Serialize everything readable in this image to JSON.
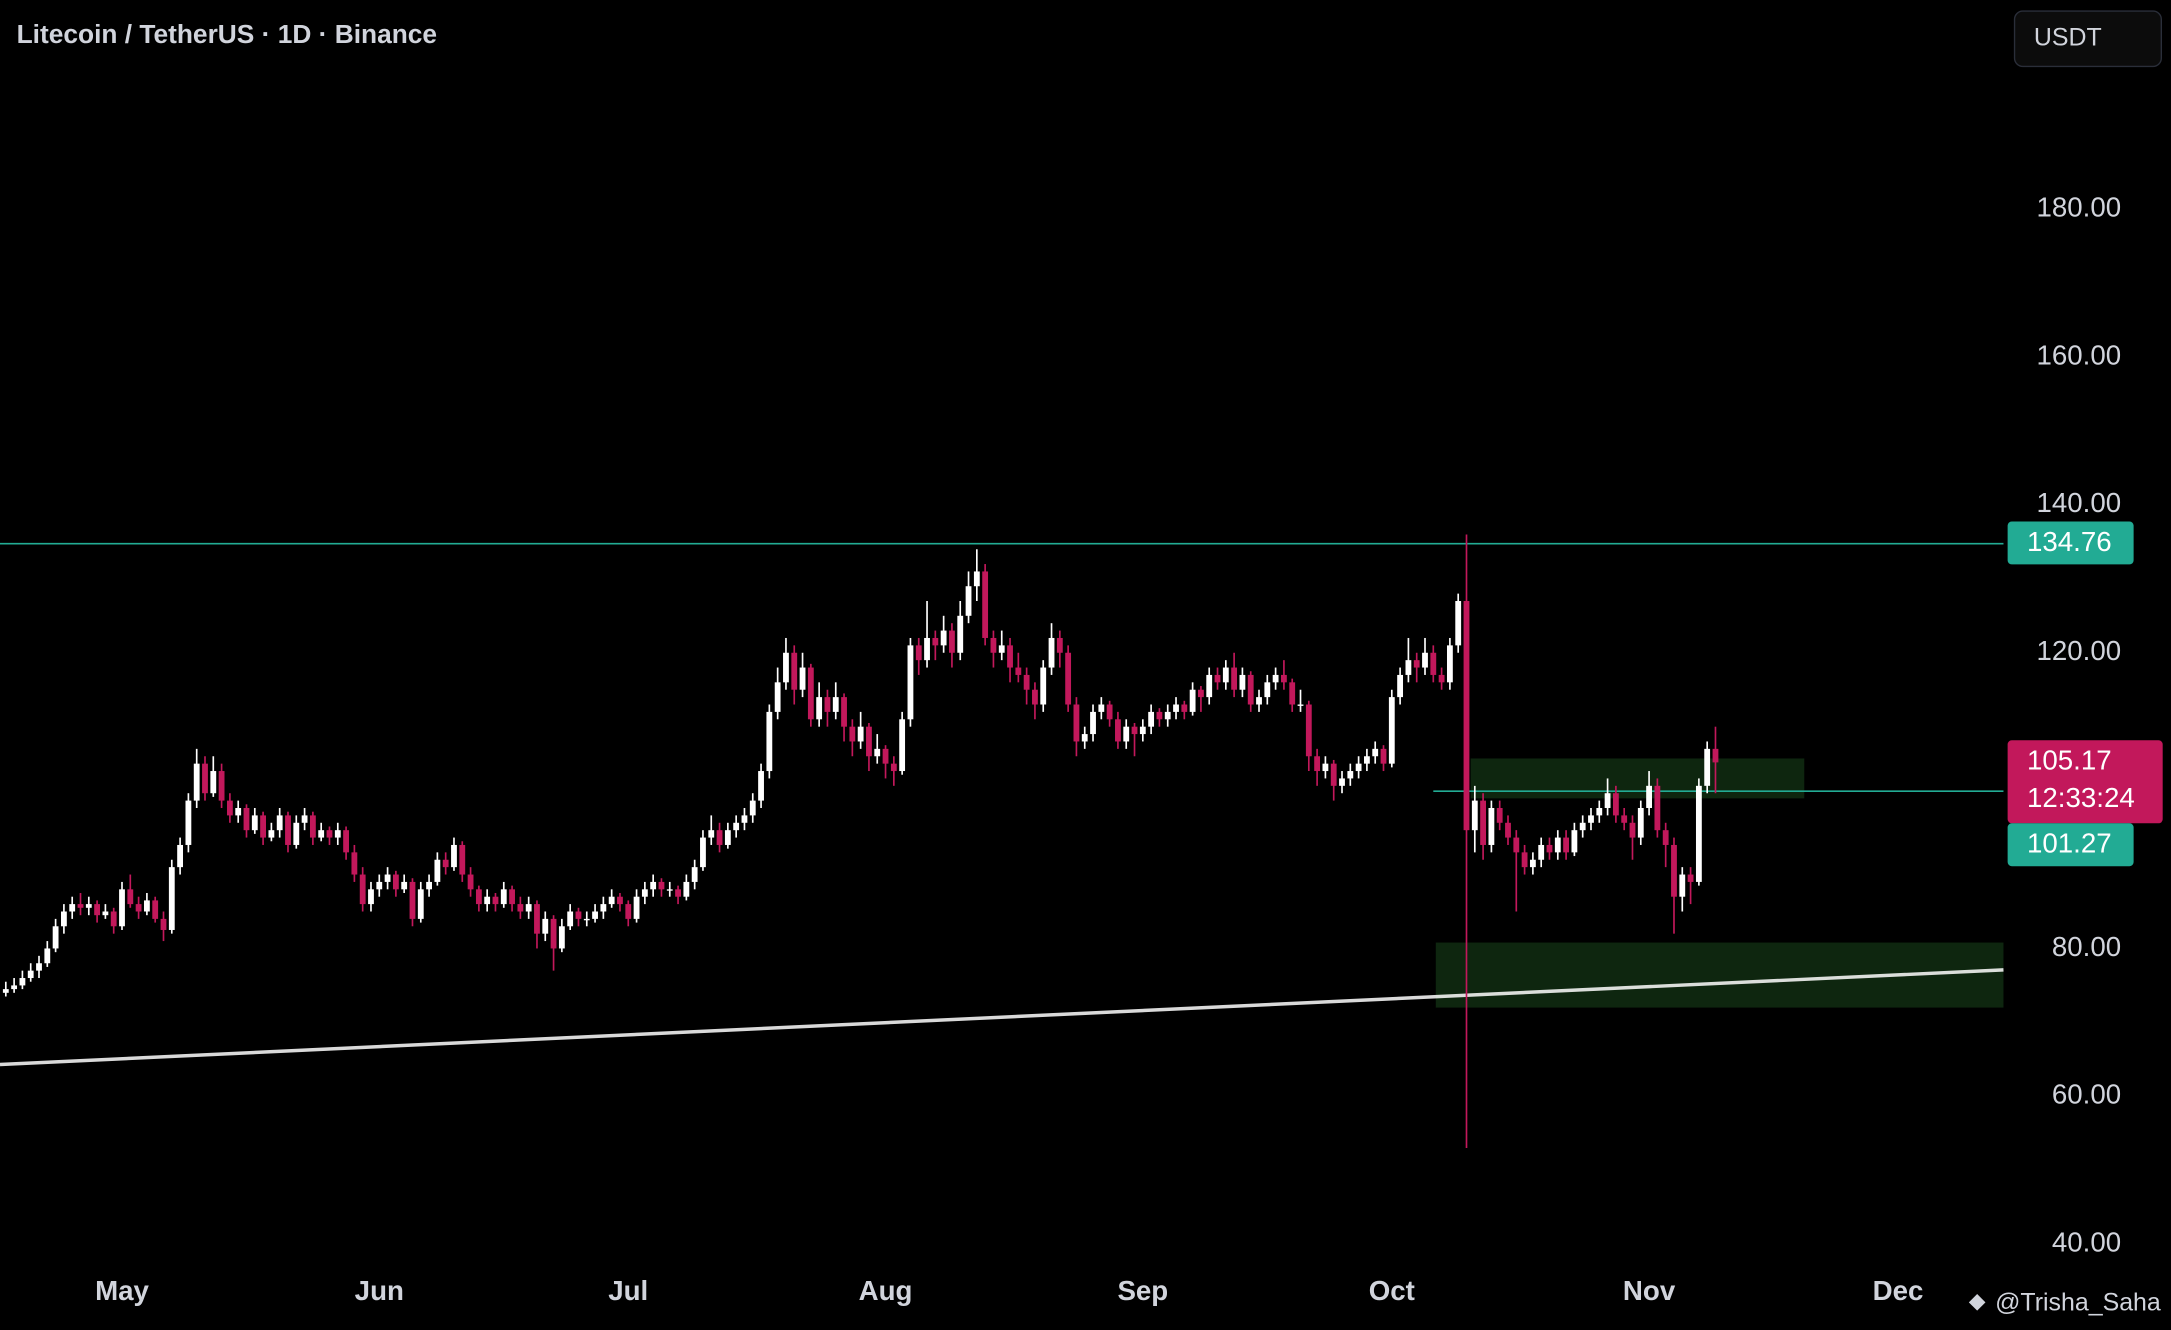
{
  "header": {
    "title": "Litecoin / TetherUS · 1D · Binance",
    "currency": "USDT"
  },
  "chart_data": {
    "type": "candlestick",
    "ohlc": [
      [
        74,
        75.5,
        73.5,
        74.5
      ],
      [
        74.5,
        76,
        74,
        75
      ],
      [
        75,
        77,
        74.5,
        76
      ],
      [
        76,
        78,
        75.5,
        77
      ],
      [
        77,
        79,
        76,
        78
      ],
      [
        78,
        81,
        77.5,
        80
      ],
      [
        80,
        84,
        79.5,
        83
      ],
      [
        83,
        86,
        82,
        85
      ],
      [
        85,
        87,
        84,
        86
      ],
      [
        86,
        87.5,
        84.5,
        85.5
      ],
      [
        85.5,
        87,
        84.5,
        86
      ],
      [
        86,
        86.5,
        83.5,
        84.5
      ],
      [
        84.5,
        86,
        84,
        85
      ],
      [
        85,
        85.5,
        82,
        83
      ],
      [
        83,
        89,
        82.5,
        88
      ],
      [
        88,
        90,
        85.5,
        86
      ],
      [
        86,
        87,
        84,
        85
      ],
      [
        85,
        87.5,
        84.5,
        86.5
      ],
      [
        86.5,
        87,
        83.5,
        84
      ],
      [
        84,
        85,
        81,
        82.5
      ],
      [
        82.5,
        92,
        82,
        91
      ],
      [
        91,
        95,
        90,
        94
      ],
      [
        94,
        101,
        93,
        100
      ],
      [
        100,
        107,
        99,
        105
      ],
      [
        105,
        106,
        100,
        101
      ],
      [
        101,
        106,
        100.5,
        104
      ],
      [
        104,
        105,
        99,
        100
      ],
      [
        100,
        101,
        97,
        98
      ],
      [
        98,
        100,
        97,
        99
      ],
      [
        99,
        99.5,
        95,
        96
      ],
      [
        96,
        99,
        95.5,
        98
      ],
      [
        98,
        98.5,
        94,
        95
      ],
      [
        95,
        97,
        94.5,
        96
      ],
      [
        96,
        99,
        95,
        98
      ],
      [
        98,
        98.5,
        93,
        94
      ],
      [
        94,
        98,
        93.5,
        97
      ],
      [
        97,
        99,
        96,
        98
      ],
      [
        98,
        98.5,
        94,
        95
      ],
      [
        95,
        97,
        94.5,
        96
      ],
      [
        96,
        96.5,
        94,
        95
      ],
      [
        95,
        97,
        94,
        96
      ],
      [
        96,
        96.5,
        92,
        93
      ],
      [
        93,
        94,
        89,
        90
      ],
      [
        90,
        91,
        85,
        86
      ],
      [
        86,
        89,
        85,
        88
      ],
      [
        88,
        90,
        87,
        89
      ],
      [
        89,
        91,
        88,
        90
      ],
      [
        90,
        90.5,
        87,
        88
      ],
      [
        88,
        90,
        87.5,
        89
      ],
      [
        89,
        89.5,
        83,
        84
      ],
      [
        84,
        89,
        83.5,
        88
      ],
      [
        88,
        90,
        87,
        89
      ],
      [
        89,
        93,
        88.5,
        92
      ],
      [
        92,
        93,
        90,
        91
      ],
      [
        91,
        95,
        90.5,
        94
      ],
      [
        94,
        94.5,
        89,
        90
      ],
      [
        90,
        91,
        87,
        88
      ],
      [
        88,
        88.5,
        85,
        86
      ],
      [
        86,
        88,
        85,
        87
      ],
      [
        87,
        87.5,
        85,
        86
      ],
      [
        86,
        89,
        85.5,
        88
      ],
      [
        88,
        88.5,
        85,
        86
      ],
      [
        86,
        87,
        84,
        85
      ],
      [
        85,
        87,
        84,
        86
      ],
      [
        86,
        86.5,
        80,
        82
      ],
      [
        82,
        85,
        81,
        84
      ],
      [
        84,
        84.5,
        77,
        80
      ],
      [
        80,
        84,
        79.5,
        83
      ],
      [
        83,
        86,
        82.5,
        85
      ],
      [
        85,
        85.5,
        83,
        84
      ],
      [
        84,
        85,
        83,
        84
      ],
      [
        84,
        86,
        83.5,
        85
      ],
      [
        85,
        87,
        84,
        86
      ],
      [
        86,
        88,
        85.5,
        87
      ],
      [
        87,
        87.5,
        85,
        86
      ],
      [
        86,
        86.5,
        83,
        84
      ],
      [
        84,
        88,
        83.5,
        87
      ],
      [
        87,
        89,
        86,
        88
      ],
      [
        88,
        90,
        87,
        89
      ],
      [
        89,
        89.5,
        87,
        88
      ],
      [
        88,
        89,
        87,
        88
      ],
      [
        88,
        88.5,
        86,
        87
      ],
      [
        87,
        90,
        86.5,
        89
      ],
      [
        89,
        92,
        88,
        91
      ],
      [
        91,
        96,
        90.5,
        95
      ],
      [
        95,
        98,
        94,
        96
      ],
      [
        96,
        97,
        93,
        94
      ],
      [
        94,
        97,
        93.5,
        96
      ],
      [
        96,
        98,
        95,
        97
      ],
      [
        97,
        99,
        96,
        98
      ],
      [
        98,
        101,
        97,
        100
      ],
      [
        100,
        105,
        99,
        104
      ],
      [
        104,
        113,
        103,
        112
      ],
      [
        112,
        118,
        111,
        116
      ],
      [
        116,
        122,
        115,
        120
      ],
      [
        120,
        121,
        113,
        115
      ],
      [
        115,
        120,
        114,
        118
      ],
      [
        118,
        118.5,
        110,
        111
      ],
      [
        111,
        116,
        110,
        114
      ],
      [
        114,
        115,
        110,
        112
      ],
      [
        112,
        116,
        111,
        114
      ],
      [
        114,
        114.5,
        108,
        110
      ],
      [
        110,
        111,
        106,
        108
      ],
      [
        108,
        112,
        107,
        110
      ],
      [
        110,
        110.5,
        104,
        106
      ],
      [
        106,
        109,
        105,
        107
      ],
      [
        107,
        107.5,
        103,
        105
      ],
      [
        105,
        106,
        102,
        104
      ],
      [
        104,
        112,
        103.5,
        111
      ],
      [
        111,
        122,
        110,
        121
      ],
      [
        121,
        122,
        117,
        119
      ],
      [
        119,
        127,
        118,
        122
      ],
      [
        122,
        123,
        119,
        121
      ],
      [
        121,
        125,
        120,
        123
      ],
      [
        123,
        124,
        118,
        120
      ],
      [
        120,
        127,
        119,
        125
      ],
      [
        125,
        131,
        124,
        129
      ],
      [
        129,
        134,
        127,
        131
      ],
      [
        131,
        132,
        121,
        122
      ],
      [
        122,
        123,
        118,
        120
      ],
      [
        120,
        123,
        119,
        121
      ],
      [
        121,
        122,
        116,
        118
      ],
      [
        118,
        120,
        116,
        117
      ],
      [
        117,
        118,
        113,
        115
      ],
      [
        115,
        116,
        111,
        113
      ],
      [
        113,
        119,
        112,
        118
      ],
      [
        118,
        124,
        117,
        122
      ],
      [
        122,
        123,
        118,
        120
      ],
      [
        120,
        121,
        112,
        113
      ],
      [
        113,
        114,
        106,
        108
      ],
      [
        108,
        110,
        107,
        109
      ],
      [
        109,
        113,
        108,
        112
      ],
      [
        112,
        114,
        111,
        113
      ],
      [
        113,
        113.5,
        110,
        111
      ],
      [
        111,
        112,
        107,
        108
      ],
      [
        108,
        111,
        107,
        110
      ],
      [
        110,
        110.5,
        106,
        109
      ],
      [
        109,
        111,
        108,
        110
      ],
      [
        110,
        113,
        109,
        112
      ],
      [
        112,
        112.5,
        110,
        111
      ],
      [
        111,
        113,
        110,
        112
      ],
      [
        112,
        114,
        111,
        113
      ],
      [
        113,
        113.5,
        111,
        112
      ],
      [
        112,
        116,
        111.5,
        115
      ],
      [
        115,
        115.5,
        112,
        114
      ],
      [
        114,
        118,
        113,
        117
      ],
      [
        117,
        118,
        115,
        116
      ],
      [
        116,
        119,
        115,
        118
      ],
      [
        118,
        120,
        114,
        115
      ],
      [
        115,
        118,
        114,
        117
      ],
      [
        117,
        117.5,
        112,
        113
      ],
      [
        113,
        115,
        112,
        114
      ],
      [
        114,
        117,
        113,
        116
      ],
      [
        116,
        118,
        115,
        117
      ],
      [
        117,
        119,
        115,
        116
      ],
      [
        116,
        116.5,
        112,
        113
      ],
      [
        113,
        115,
        112,
        113
      ],
      [
        113,
        113.5,
        104,
        106
      ],
      [
        106,
        107,
        102,
        104
      ],
      [
        104,
        106,
        103,
        105
      ],
      [
        105,
        105.5,
        100,
        102
      ],
      [
        102,
        104,
        101,
        103
      ],
      [
        103,
        105,
        102,
        104
      ],
      [
        104,
        106,
        103,
        105
      ],
      [
        105,
        107,
        104,
        106
      ],
      [
        106,
        108,
        105,
        107
      ],
      [
        107,
        107.5,
        104,
        105
      ],
      [
        105,
        115,
        104.5,
        114
      ],
      [
        114,
        118,
        113,
        117
      ],
      [
        117,
        122,
        116,
        119
      ],
      [
        119,
        120,
        116,
        118
      ],
      [
        118,
        122,
        117,
        120
      ],
      [
        120,
        121,
        116,
        117
      ],
      [
        117,
        118,
        115,
        116
      ],
      [
        116,
        122,
        115,
        121
      ],
      [
        121,
        128,
        120,
        127
      ],
      [
        127,
        136,
        53,
        96
      ],
      [
        96,
        102,
        93,
        100
      ],
      [
        100,
        101,
        92,
        94
      ],
      [
        94,
        100,
        93,
        99
      ],
      [
        99,
        100,
        96,
        97
      ],
      [
        97,
        98,
        94,
        95
      ],
      [
        95,
        96,
        85,
        93
      ],
      [
        93,
        94,
        90,
        91
      ],
      [
        91,
        93,
        90,
        92
      ],
      [
        92,
        95,
        91,
        94
      ],
      [
        94,
        95,
        92,
        93
      ],
      [
        93,
        96,
        92,
        95
      ],
      [
        95,
        96,
        92,
        93
      ],
      [
        93,
        97,
        92.5,
        96
      ],
      [
        96,
        98,
        95,
        97
      ],
      [
        97,
        99,
        96,
        98
      ],
      [
        98,
        100,
        97,
        99
      ],
      [
        99,
        103,
        98,
        101
      ],
      [
        101,
        102,
        97,
        98
      ],
      [
        98,
        99,
        96,
        97
      ],
      [
        97,
        98,
        92,
        95
      ],
      [
        95,
        100,
        94,
        99
      ],
      [
        99,
        104,
        98,
        102
      ],
      [
        102,
        103,
        95,
        96
      ],
      [
        96,
        97,
        91,
        94
      ],
      [
        94,
        95,
        82,
        87
      ],
      [
        87,
        91,
        85,
        90
      ],
      [
        90,
        91,
        86,
        89
      ],
      [
        89,
        103,
        88.5,
        102
      ],
      [
        102,
        108,
        101,
        107
      ],
      [
        107,
        110,
        101,
        105.17
      ]
    ],
    "up_color": "#ffffff",
    "down_color": "#c2185b",
    "xlim": [
      -0.7,
      240.7
    ],
    "xticks": [
      {
        "value": 14,
        "label": "May"
      },
      {
        "value": 45,
        "label": "Jun"
      },
      {
        "value": 75,
        "label": "Jul"
      },
      {
        "value": 106,
        "label": "Aug"
      },
      {
        "value": 137,
        "label": "Sep"
      },
      {
        "value": 167,
        "label": "Oct"
      },
      {
        "value": 198,
        "label": "Nov"
      },
      {
        "value": 228,
        "label": "Dec"
      }
    ],
    "ylim": [
      37,
      208.3
    ],
    "yticks": [
      {
        "value": 40,
        "label": "40.00"
      },
      {
        "value": 60,
        "label": "60.00"
      },
      {
        "value": 80,
        "label": "80.00"
      },
      {
        "value": 100,
        "label": "100.00"
      },
      {
        "value": 120,
        "label": "120.00"
      },
      {
        "value": 140,
        "label": "140.00"
      },
      {
        "value": 160,
        "label": "160.00"
      },
      {
        "value": 180,
        "label": "180.00"
      }
    ],
    "price_lines": [
      {
        "value": 134.76,
        "color": "#22ab94",
        "x_start": -0.7
      },
      {
        "value": 101.27,
        "color": "#22ab94",
        "x_start": 172
      }
    ],
    "countdown": "12:33:24",
    "trendline": {
      "x": [
        -0.7,
        240.7
      ],
      "y": [
        64.3,
        77.1
      ],
      "color": "#ffffff"
    },
    "zones": [
      {
        "x": [
          176.5,
          216.7
        ],
        "y": [
          100.3,
          105.7
        ]
      },
      {
        "x": [
          172.3,
          240.7
        ],
        "y": [
          72,
          80.8
        ]
      }
    ],
    "zone_color": "#2e7d32"
  },
  "watermark": "@Trisha_Saha"
}
